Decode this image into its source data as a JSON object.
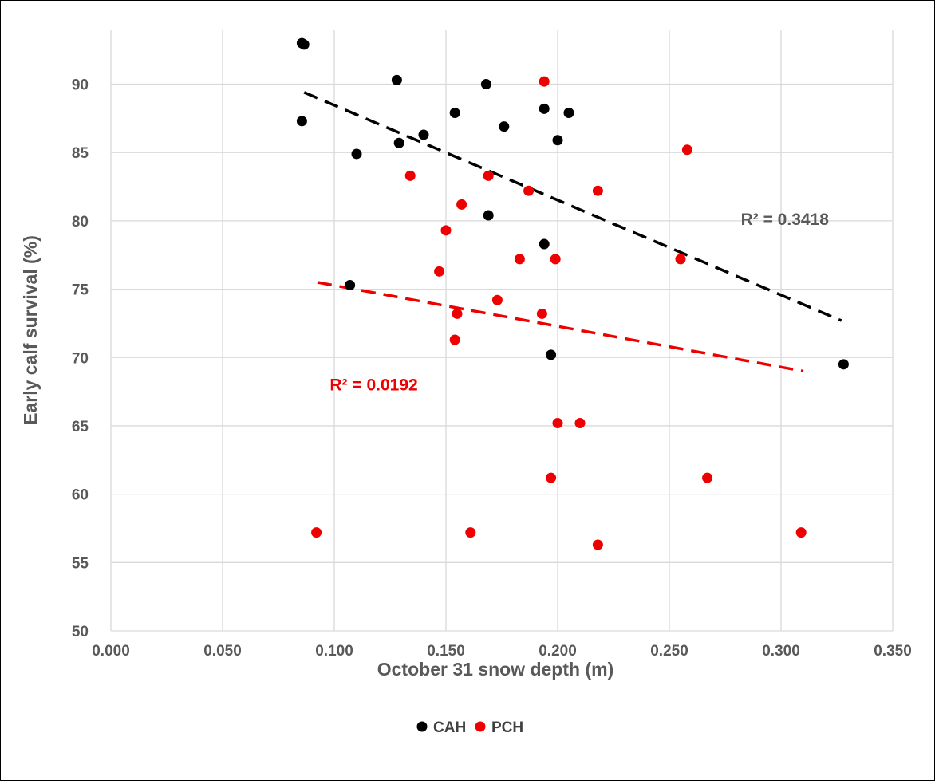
{
  "chart_data": {
    "type": "scatter",
    "xlabel": "October 31 snow depth (m)",
    "ylabel": "Early calf survival (%)",
    "xlim": [
      0,
      0.35
    ],
    "ylim": [
      50,
      94
    ],
    "x_ticks": [
      "0.000",
      "0.050",
      "0.100",
      "0.150",
      "0.200",
      "0.250",
      "0.300",
      "0.350"
    ],
    "y_ticks": [
      "50",
      "55",
      "60",
      "65",
      "70",
      "75",
      "80",
      "85",
      "90"
    ],
    "grid": true,
    "legend_position": "bottom",
    "series": [
      {
        "name": "CAH",
        "color": "#000000",
        "points": [
          [
            0.0855,
            93.0
          ],
          [
            0.0865,
            92.9
          ],
          [
            0.0855,
            87.3
          ],
          [
            0.11,
            84.9
          ],
          [
            0.107,
            75.3
          ],
          [
            0.128,
            90.3
          ],
          [
            0.129,
            85.7
          ],
          [
            0.14,
            86.3
          ],
          [
            0.154,
            87.9
          ],
          [
            0.168,
            90.0
          ],
          [
            0.169,
            80.4
          ],
          [
            0.176,
            86.9
          ],
          [
            0.194,
            88.2
          ],
          [
            0.194,
            78.3
          ],
          [
            0.2,
            85.9
          ],
          [
            0.205,
            87.9
          ],
          [
            0.197,
            70.2
          ],
          [
            0.328,
            69.5
          ]
        ],
        "trendline": {
          "x": [
            0.0865,
            0.327
          ],
          "y": [
            89.4,
            72.7
          ],
          "color": "#000000",
          "r2": "R² = 0.3418",
          "r2_color": "#595959"
        }
      },
      {
        "name": "PCH",
        "color": "#ee0000",
        "points": [
          [
            0.194,
            90.2
          ],
          [
            0.258,
            85.2
          ],
          [
            0.134,
            83.3
          ],
          [
            0.169,
            83.3
          ],
          [
            0.187,
            82.2
          ],
          [
            0.218,
            82.2
          ],
          [
            0.157,
            81.2
          ],
          [
            0.15,
            79.3
          ],
          [
            0.183,
            77.2
          ],
          [
            0.199,
            77.2
          ],
          [
            0.255,
            77.2
          ],
          [
            0.147,
            76.3
          ],
          [
            0.173,
            74.2
          ],
          [
            0.155,
            73.2
          ],
          [
            0.193,
            73.2
          ],
          [
            0.154,
            71.3
          ],
          [
            0.2,
            65.2
          ],
          [
            0.21,
            65.2
          ],
          [
            0.197,
            61.2
          ],
          [
            0.267,
            61.2
          ],
          [
            0.092,
            57.2
          ],
          [
            0.161,
            57.2
          ],
          [
            0.309,
            57.2
          ],
          [
            0.218,
            56.3
          ]
        ],
        "trendline": {
          "x": [
            0.0925,
            0.31
          ],
          "y": [
            75.5,
            69.0
          ],
          "color": "#ee0000",
          "r2": "R² = 0.0192",
          "r2_color": "#ee0000"
        }
      }
    ]
  }
}
